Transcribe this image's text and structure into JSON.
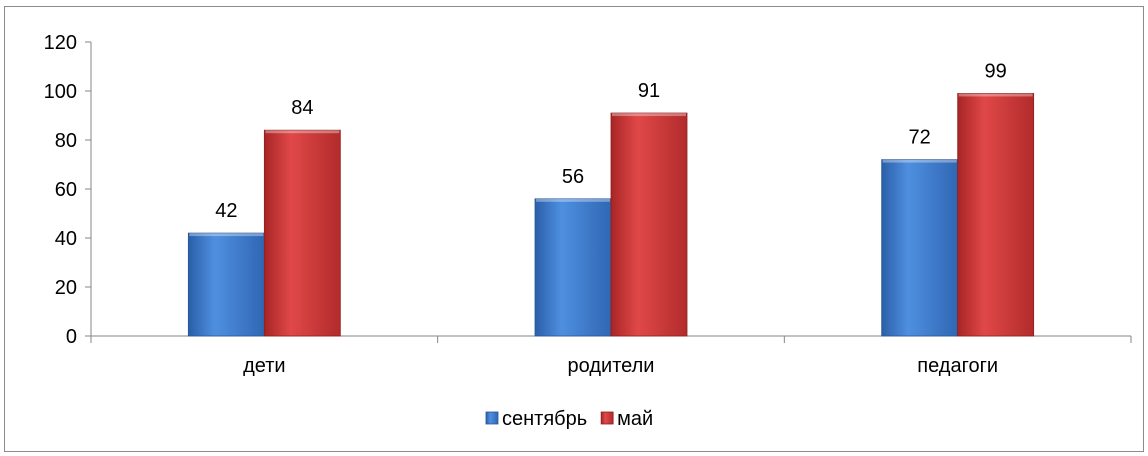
{
  "chart_data": {
    "type": "bar",
    "categories": [
      "дети",
      "родители",
      "педагоги"
    ],
    "series": [
      {
        "name": "сентябрь",
        "values": [
          42,
          56,
          72
        ],
        "color": "#3a78cf"
      },
      {
        "name": "май",
        "values": [
          84,
          91,
          99
        ],
        "color": "#d23a3a"
      }
    ],
    "ylim": [
      0,
      120
    ],
    "yticks": [
      "0",
      "20",
      "40",
      "60",
      "80",
      "100",
      "120"
    ],
    "ytick_values": [
      0,
      20,
      40,
      60,
      80,
      100,
      120
    ],
    "grid": false,
    "legend_position": "bottom"
  }
}
